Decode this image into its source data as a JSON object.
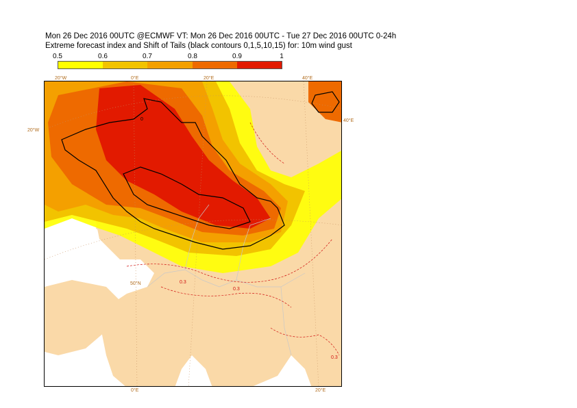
{
  "title_line1": "Mon 26 Dec 2016 00UTC @ECMWF VT: Mon 26 Dec 2016 00UTC - Tue 27 Dec 2016 00UTC  0-24h",
  "title_line2": "Extreme forecast index and Shift of Tails (black contours 0,1,5,10,15) for: 10m wind gust",
  "legend": {
    "ticks": [
      "0.5",
      "0.6",
      "0.7",
      "0.8",
      "0.9",
      "1"
    ],
    "colors": [
      "#ffff00",
      "#f2c300",
      "#f4a000",
      "#ee6a00",
      "#e21a00"
    ]
  },
  "map": {
    "land_color": "#fad9a8",
    "sea_color": "#ffffff",
    "contour_label_sot": "0",
    "contour_label_efi": "0.3",
    "graticule_labels": {
      "top": [
        "20°W",
        "0°E",
        "20°E",
        "40°E"
      ],
      "left": [
        "20°W"
      ],
      "right": [
        "40°E"
      ],
      "bottom": [
        "0°E",
        "20°E"
      ],
      "inner": [
        "50°N"
      ]
    }
  }
}
